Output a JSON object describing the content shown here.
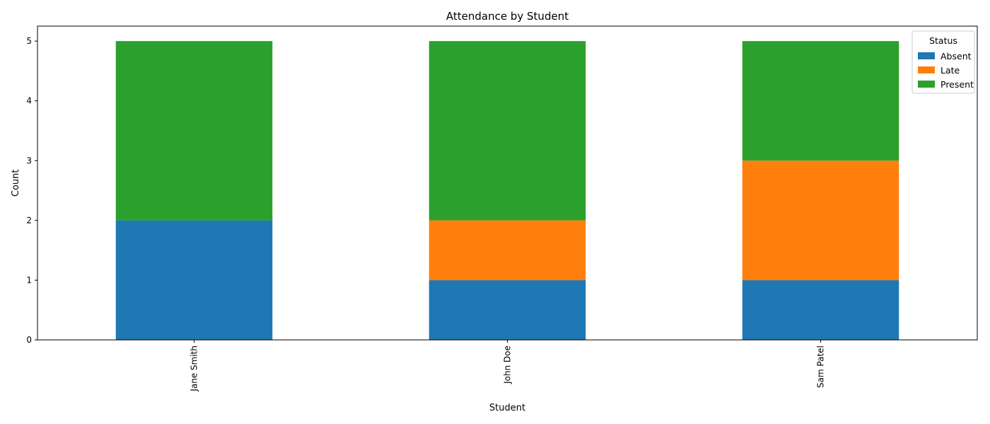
{
  "chart_data": {
    "type": "bar",
    "stacked": true,
    "title": "Attendance by Student",
    "xlabel": "Student",
    "ylabel": "Count",
    "categories": [
      "Jane Smith",
      "John Doe",
      "Sam Patel"
    ],
    "series": [
      {
        "name": "Absent",
        "values": [
          2,
          1,
          1
        ],
        "color": "#1f77b4"
      },
      {
        "name": "Late",
        "values": [
          0,
          1,
          2
        ],
        "color": "#ff7f0e"
      },
      {
        "name": "Present",
        "values": [
          3,
          3,
          2
        ],
        "color": "#2ca02c"
      }
    ],
    "ylim": [
      0,
      5.25
    ],
    "yticks": [
      0,
      1,
      2,
      3,
      4,
      5
    ],
    "grid": false,
    "legend": {
      "title": "Status",
      "placement": "top-right"
    }
  }
}
